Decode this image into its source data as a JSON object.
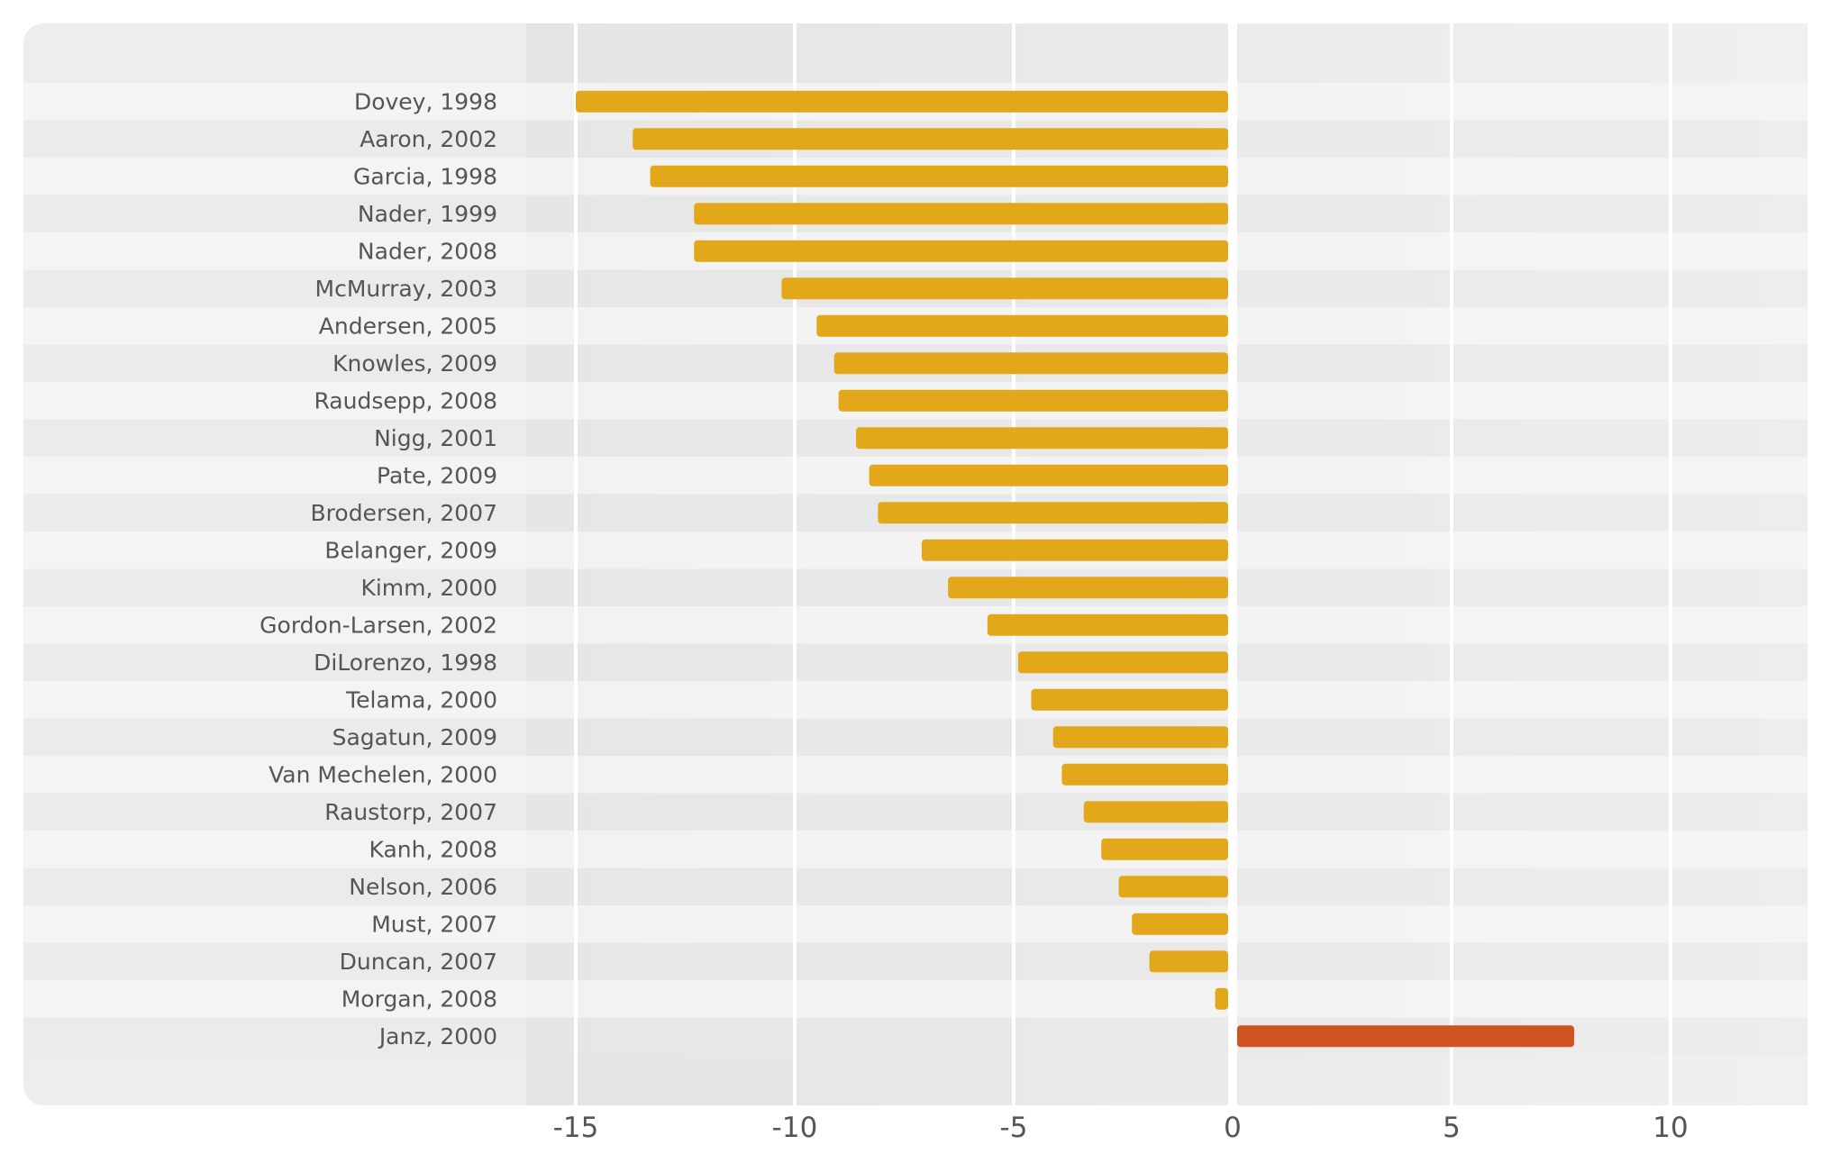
{
  "chart_data": {
    "type": "bar",
    "orientation": "horizontal",
    "title": "",
    "xlabel": "",
    "ylabel": "",
    "xlim": [
      -16.2,
      13.2
    ],
    "xticks": [
      -15,
      -10,
      -5,
      0,
      5,
      10
    ],
    "xtick_labels": [
      "-15",
      "-10",
      "-5",
      "0",
      "5",
      "10"
    ],
    "grid": true,
    "colors": {
      "negative": "#E3A81A",
      "positive": "#CE5422"
    },
    "categories": [
      "Dovey, 1998",
      "Aaron, 2002",
      "Garcia, 1998",
      "Nader, 1999",
      "Nader, 2008",
      "McMurray, 2003",
      "Andersen, 2005",
      "Knowles, 2009",
      "Raudsepp, 2008",
      "Nigg, 2001",
      "Pate, 2009",
      "Brodersen, 2007",
      "Belanger, 2009",
      "Kimm, 2000",
      "Gordon-Larsen, 2002",
      "DiLorenzo, 1998",
      "Telama, 2000",
      "Sagatun, 2009",
      "Van Mechelen, 2000",
      "Raustorp, 2007",
      "Kanh, 2008",
      "Nelson, 2006",
      "Must, 2007",
      "Duncan, 2007",
      "Morgan, 2008",
      "Janz, 2000"
    ],
    "values": [
      -15.0,
      -13.7,
      -13.3,
      -12.3,
      -12.3,
      -10.3,
      -9.5,
      -9.1,
      -9.0,
      -8.6,
      -8.3,
      -8.1,
      -7.1,
      -6.5,
      -5.6,
      -4.9,
      -4.6,
      -4.1,
      -3.9,
      -3.4,
      -3.0,
      -2.6,
      -2.3,
      -1.9,
      -0.4,
      7.8
    ]
  }
}
